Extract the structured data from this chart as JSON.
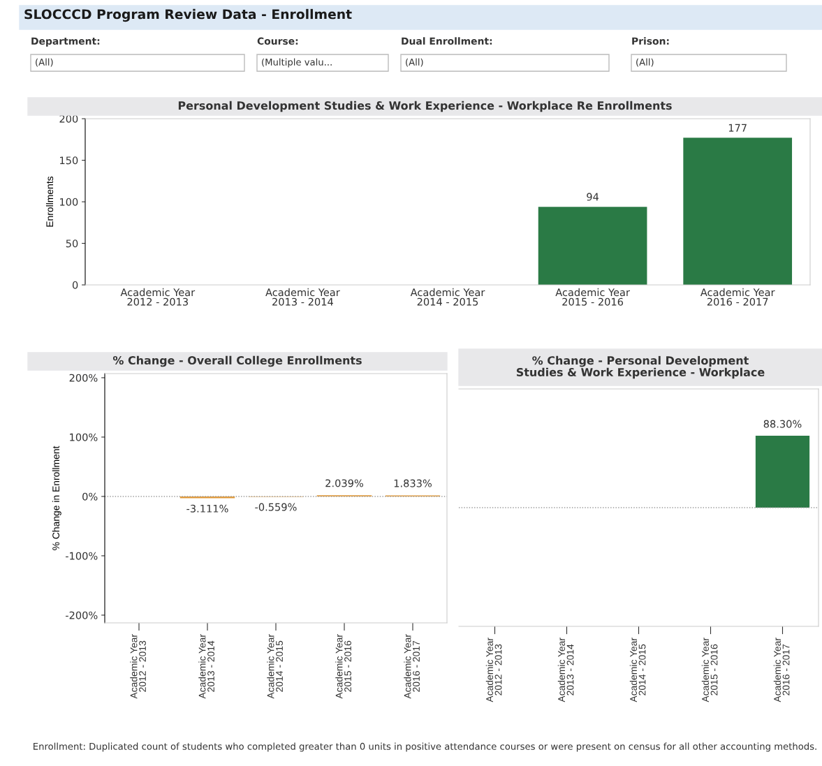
{
  "chart_data": [
    {
      "type": "other",
      "title": "SLOCCCD Program Review Data - Enrollment",
      "annotations": [
        "Department:",
        "(All)",
        "Course:",
        "(Multiple valu...",
        "Dual Enrollment:",
        "(All)",
        "Prison:",
        "(All)"
      ]
    },
    {
      "type": "bar",
      "title": "Personal Development Studies & Work Experience - Workplace Re Enrollments",
      "ylabel": "Enrollments",
      "categories": [
        "Academic Year 2012 - 2013",
        "Academic Year 2013 - 2014",
        "Academic Year 2014 - 2015",
        "Academic Year 2015 - 2016",
        "Academic Year 2016 - 2017"
      ],
      "values": [
        null,
        null,
        null,
        94,
        177
      ],
      "color": "#2a7a45",
      "ylim": [
        0,
        200
      ],
      "yticks": [
        0,
        50,
        100,
        150,
        200
      ],
      "data_labels": true,
      "grid": false
    },
    {
      "type": "bar",
      "title": "% Change - Overall College Enrollments",
      "ylabel": "% Change in Enrollment",
      "categories": [
        "Academic Year 2012 - 2013",
        "Academic Year 2013 - 2014",
        "Academic Year 2014 - 2015",
        "Academic Year 2015 - 2016",
        "Academic Year 2016 - 2017"
      ],
      "values": [
        null,
        -3.111,
        -0.559,
        2.039,
        1.833
      ],
      "value_labels": [
        null,
        "-3.111%",
        "-0.559%",
        "2.039%",
        "1.833%"
      ],
      "color": "#e39b3a",
      "ylim": [
        -213,
        207
      ],
      "yticks": [
        {
          "value": -200,
          "label": "-200%"
        },
        {
          "value": -100,
          "label": "-100%"
        },
        {
          "value": 0,
          "label": "0%"
        },
        {
          "value": 100,
          "label": "100%"
        },
        {
          "value": 200,
          "label": "200%"
        }
      ],
      "ref_lines": [
        {
          "axis": "y",
          "value": 0,
          "color": "#999999",
          "line_style": "dotted"
        }
      ],
      "grid": false
    },
    {
      "type": "bar",
      "title": "% Change - Personal Development Studies & Work Experience - Workplace",
      "categories": [
        "Academic Year 2012 - 2013",
        "Academic Year 2013 - 2014",
        "Academic Year 2014 - 2015",
        "Academic Year 2015 - 2016",
        "Academic Year 2016 - 2017"
      ],
      "values": [
        null,
        null,
        null,
        null,
        88.3
      ],
      "value_labels": [
        null,
        null,
        null,
        null,
        "88.30%"
      ],
      "color": "#2a7a45",
      "tick_labels": "x",
      "ref_lines": [
        {
          "axis": "y",
          "value": 0,
          "color": "#999999",
          "line_style": "dotted"
        }
      ],
      "grid": false
    },
    {
      "type": "other",
      "annotations": [
        "Enrollment: Duplicated count of students who completed greater than 0 units in positive attendance courses or were present on census for all other accounting methods."
      ]
    }
  ]
}
